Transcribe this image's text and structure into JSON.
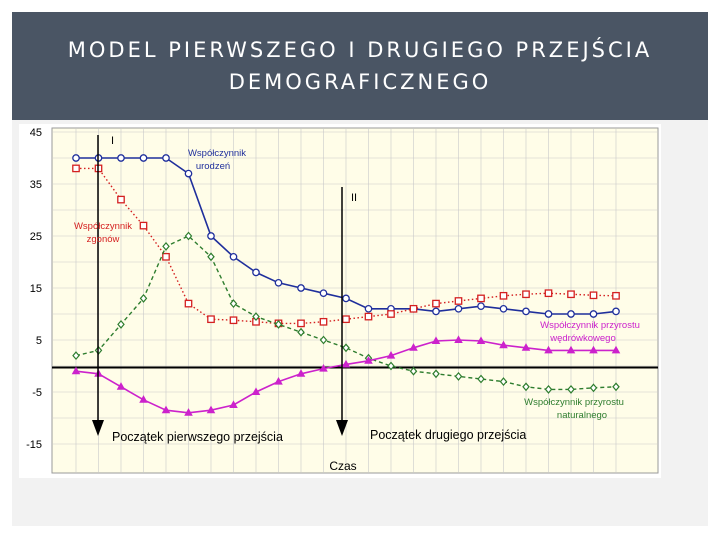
{
  "slide": {
    "title_line1": "MODEL PIERWSZEGO I DRUGIEGO PRZEJŚCIA",
    "title_line2": "DEMOGRAFICZNEGO"
  },
  "chart_data": {
    "type": "line",
    "title": "",
    "xlabel": "Czas",
    "ylabel": "",
    "ylim": [
      -15,
      45
    ],
    "y_ticks": [
      45,
      35,
      25,
      15,
      5,
      -5,
      -15
    ],
    "grid": true,
    "background": "#fffde8",
    "x": [
      1,
      2,
      3,
      4,
      5,
      6,
      7,
      8,
      9,
      10,
      11,
      12,
      13,
      14,
      15,
      16,
      17,
      18,
      19,
      20,
      21,
      22,
      23,
      24,
      25
    ],
    "series": [
      {
        "name": "Współczynnik urodzeń",
        "color": "#1f2f9c",
        "marker": "circle",
        "line": "solid",
        "values": [
          40,
          40,
          40,
          40,
          40,
          37,
          25,
          21,
          18,
          16,
          15,
          14,
          13,
          11,
          11,
          11,
          10.5,
          11,
          11.5,
          11,
          10.5,
          10,
          10,
          10,
          10.5
        ]
      },
      {
        "name": "Współczynnik zgonów",
        "color": "#d42020",
        "marker": "square",
        "line": "dotted",
        "values": [
          38,
          38,
          32,
          27,
          21,
          12,
          9,
          8.8,
          8.5,
          8.2,
          8.2,
          8.5,
          9,
          9.5,
          10,
          11,
          12,
          12.5,
          13,
          13.5,
          13.8,
          14,
          13.8,
          13.6,
          13.5
        ]
      },
      {
        "name": "Współczynnik przyrostu naturalnego",
        "color": "#2e7d2e",
        "marker": "diamond",
        "line": "dashed",
        "values": [
          2,
          3,
          8,
          13,
          23,
          25,
          21,
          12,
          9.5,
          8,
          6.5,
          5,
          3.5,
          1.5,
          0,
          -1,
          -1.5,
          -2,
          -2.5,
          -3,
          -4,
          -4.5,
          -4.5,
          -4.2,
          -4
        ]
      },
      {
        "name": "Współczynnik przyrostu wędrówkowego",
        "color": "#cc22cc",
        "marker": "triangle",
        "line": "solid",
        "values": [
          -1,
          -1.5,
          -4,
          -6.5,
          -8.5,
          -9,
          -8.5,
          -7.5,
          -5,
          -3,
          -1.5,
          -0.5,
          0.3,
          1,
          2,
          3.5,
          4.8,
          5,
          4.8,
          4,
          3.5,
          3,
          3,
          3,
          3
        ]
      }
    ],
    "annotations": {
      "phase_1": "I",
      "phase_2": "II",
      "start_1": "Początek pierwszego przejścia",
      "start_2": "Początek drugiego przejścia"
    },
    "series_label_lines": {
      "birth": [
        "Współczynnik",
        "urodzeń"
      ],
      "death": [
        "Współczynnik",
        "zgonów"
      ],
      "migration": [
        "Współczynnik przyrostu",
        "wędrówkowego"
      ],
      "natural": [
        "Współczynnik przyrostu",
        "naturalnego"
      ]
    }
  }
}
